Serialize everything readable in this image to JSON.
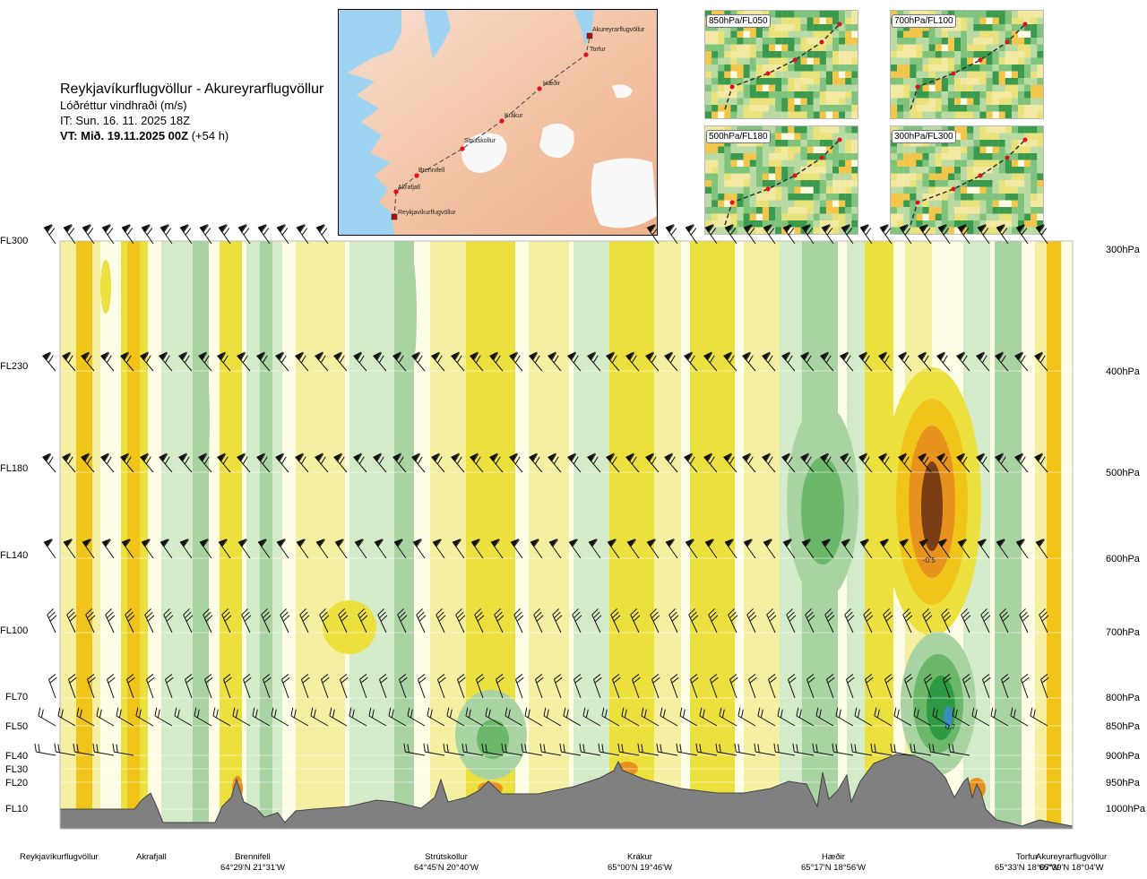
{
  "header": {
    "route": "Reykjavíkurflugvöllur - Akureyrarflugvöllur",
    "quantity": "Lóðréttur vindhraði (m/s)",
    "issue_time": "IT: Sun. 16. 11. 2025 18Z",
    "valid_label": "VT: Mið. 19.11.2025 00Z",
    "valid_offset": "(+54 h)"
  },
  "map": {
    "places": [
      "Akureyrarflugvöllur",
      "Torfur",
      "Hæðir",
      "Krákur",
      "Strútskollur",
      "Brennifell",
      "Akrafjall",
      "Reykjavíkurflugvöllur"
    ]
  },
  "thumbnails": [
    {
      "label": "850hPa/FL050"
    },
    {
      "label": "700hPa/FL100"
    },
    {
      "label": "500hPa/FL180"
    },
    {
      "label": "300hPa/FL300"
    }
  ],
  "colors": {
    "strong_down": "#7a3d14",
    "mod_down": "#e8921e",
    "down": "#f0c419",
    "weak_down": "#ece03f",
    "slight_down": "#f5efa1",
    "neutral": "#fdfde6",
    "slight_up": "#d4ebc9",
    "weak_up": "#a9d3a2",
    "up": "#6cb86a",
    "strong_up": "#2e9a44",
    "extreme_up": "#157a3a",
    "terrain": "#808080"
  },
  "chart_data": {
    "type": "heatmap",
    "title": "Lóðréttur vindhraði (m/s)",
    "xlabel": "",
    "ylabel": "",
    "left_axis_labels": [
      "FL300",
      "FL230",
      "FL180",
      "FL140",
      "FL100",
      "FL70",
      "FL50",
      "FL40",
      "FL30",
      "FL20",
      "FL10"
    ],
    "right_axis_labels": [
      "300hPa",
      "400hPa",
      "500hPa",
      "600hPa",
      "700hPa",
      "800hPa",
      "850hPa",
      "900hPa",
      "950hPa",
      "1000hPa"
    ],
    "pressure_levels_hPa": [
      300,
      400,
      500,
      600,
      700,
      800,
      850,
      900,
      950,
      1000
    ],
    "annotations": [
      {
        "text": "-0.5",
        "location": "Hæðir-Torfur",
        "level_hPa": 600
      },
      {
        "text": "0.7",
        "location": "Hæðir-Torfur",
        "level_hPa": 850
      }
    ],
    "locations": [
      {
        "name": "Reykjavíkurflugvöllur",
        "coord": ""
      },
      {
        "name": "Akrafjall",
        "coord": ""
      },
      {
        "name": "Brennifell",
        "coord": "64°29'N 21°31'W"
      },
      {
        "name": "Strútskollur",
        "coord": "64°45'N 20°40'W"
      },
      {
        "name": "Krákur",
        "coord": "65°00'N 19°46'W"
      },
      {
        "name": "Hæðir",
        "coord": "65°17'N 18°56'W"
      },
      {
        "name": "Torfur",
        "coord": "65°33'N 18°07'W"
      },
      {
        "name": "Akureyrarflugvöllur",
        "coord": "65°39'N 18°04'W"
      }
    ]
  }
}
